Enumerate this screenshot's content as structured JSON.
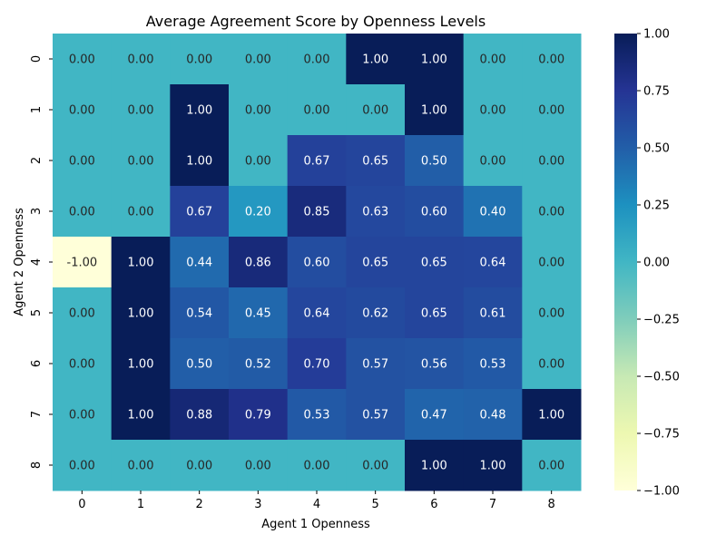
{
  "chart_data": {
    "type": "heatmap",
    "title": "Average Agreement Score by Openness Levels",
    "xlabel": "Agent 1 Openness",
    "ylabel": "Agent 2 Openness",
    "x_categories": [
      "0",
      "1",
      "2",
      "3",
      "4",
      "5",
      "6",
      "7",
      "8"
    ],
    "y_categories": [
      "0",
      "1",
      "2",
      "3",
      "4",
      "5",
      "6",
      "7",
      "8"
    ],
    "values": [
      [
        0.0,
        0.0,
        0.0,
        0.0,
        0.0,
        1.0,
        1.0,
        0.0,
        0.0
      ],
      [
        0.0,
        0.0,
        1.0,
        0.0,
        0.0,
        0.0,
        1.0,
        0.0,
        0.0
      ],
      [
        0.0,
        0.0,
        1.0,
        0.0,
        0.67,
        0.65,
        0.5,
        0.0,
        0.0
      ],
      [
        0.0,
        0.0,
        0.67,
        0.2,
        0.85,
        0.63,
        0.6,
        0.4,
        0.0
      ],
      [
        -1.0,
        1.0,
        0.44,
        0.86,
        0.6,
        0.65,
        0.65,
        0.64,
        0.0
      ],
      [
        0.0,
        1.0,
        0.54,
        0.45,
        0.64,
        0.62,
        0.65,
        0.61,
        0.0
      ],
      [
        0.0,
        1.0,
        0.5,
        0.52,
        0.7,
        0.57,
        0.56,
        0.53,
        0.0
      ],
      [
        0.0,
        1.0,
        0.88,
        0.79,
        0.53,
        0.57,
        0.47,
        0.48,
        1.0
      ],
      [
        0.0,
        0.0,
        0.0,
        0.0,
        0.0,
        0.0,
        1.0,
        1.0,
        0.0
      ]
    ],
    "value_format_decimals": 2,
    "color_range": [
      -1.0,
      1.0
    ],
    "colormap": "YlGnBu",
    "colorbar_ticks": [
      "1.00",
      "0.75",
      "0.50",
      "0.25",
      "0.00",
      "−0.25",
      "−0.50",
      "−0.75",
      "−1.00"
    ],
    "colorbar_tick_values": [
      1.0,
      0.75,
      0.5,
      0.25,
      0.0,
      -0.25,
      -0.5,
      -0.75,
      -1.0
    ],
    "grid": false
  }
}
